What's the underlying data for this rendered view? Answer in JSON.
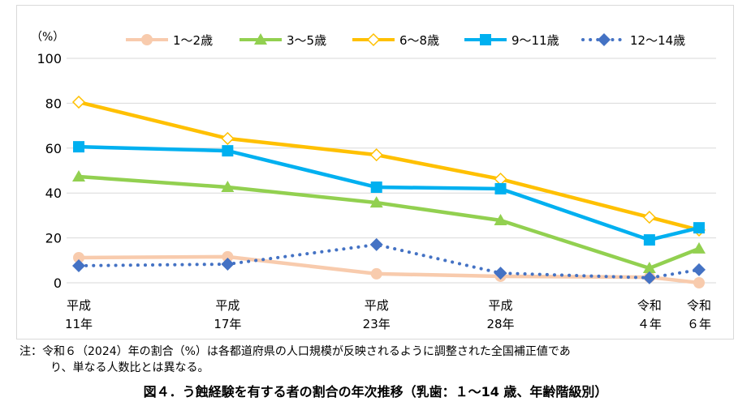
{
  "chart_data": {
    "type": "line",
    "title": "図４．う蝕経験を有する者の割合の年次推移（乳歯：１～14 歳、年齢階級別）",
    "ylabel": "（%）",
    "ylim": [
      0,
      100
    ],
    "yticks": [
      "0",
      "20",
      "40",
      "60",
      "80",
      "100"
    ],
    "grid": true,
    "legend_position": "top",
    "x_years": [
      1999,
      2005,
      2011,
      2016,
      2022,
      2024
    ],
    "categories": [
      [
        "平成",
        "11年"
      ],
      [
        "平成",
        "17年"
      ],
      [
        "平成",
        "23年"
      ],
      [
        "平成",
        "28年"
      ],
      [
        "令和",
        "４年"
      ],
      [
        "令和",
        "６年"
      ]
    ],
    "series": [
      {
        "name": "1～2歳",
        "color": "#f8cbad",
        "marker": "circle",
        "dotted": false,
        "values": [
          11.2,
          11.6,
          4.0,
          2.9,
          2.5,
          0.0
        ]
      },
      {
        "name": "3～5歳",
        "color": "#92d050",
        "marker": "triangle",
        "dotted": false,
        "values": [
          47.3,
          42.6,
          35.7,
          27.8,
          6.5,
          15.2
        ]
      },
      {
        "name": "6～8歳",
        "color": "#ffc000",
        "marker": "diamond-open",
        "dotted": false,
        "values": [
          80.5,
          64.3,
          57.0,
          46.2,
          29.2,
          23.5
        ]
      },
      {
        "name": "9～11歳",
        "color": "#00b0f0",
        "marker": "square",
        "dotted": false,
        "values": [
          60.6,
          58.8,
          42.6,
          41.9,
          19.1,
          24.5
        ]
      },
      {
        "name": "12～14歳",
        "color": "#4472c4",
        "marker": "diamond",
        "dotted": true,
        "values": [
          7.6,
          8.3,
          17.0,
          4.3,
          2.2,
          5.8
        ]
      }
    ]
  },
  "note": {
    "line1": "注：令和６（2024）年の割合（%）は各都道府県の人口規模が反映されるように調整された全国補正値であ",
    "line2": "り、単なる人数比とは異なる。"
  }
}
